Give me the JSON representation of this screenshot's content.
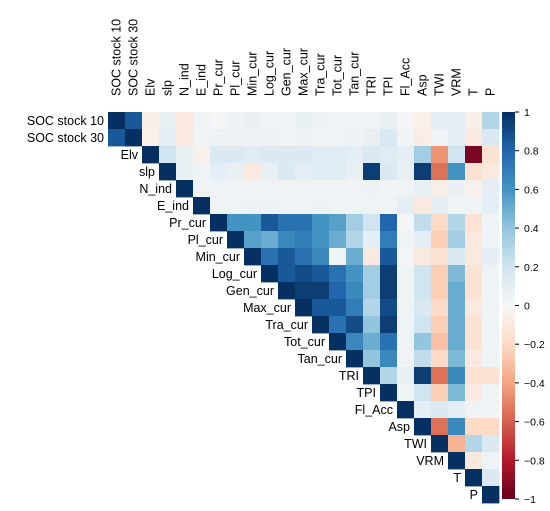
{
  "chart_data": {
    "type": "heatmap",
    "variables": [
      "SOC stock 10",
      "SOC stock 30",
      "Elv",
      "slp",
      "N_ind",
      "E_ind",
      "Pr_cur",
      "Pl_cur",
      "Min_cur",
      "Log_cur",
      "Gen_cur",
      "Max_cur",
      "Tra_cur",
      "Tot_cur",
      "Tan_cur",
      "TRI",
      "TPI",
      "Fl_Acc",
      "Asp",
      "TWI",
      "VRM",
      "T",
      "P"
    ],
    "layout": "lower-left-triangle",
    "colorbar": {
      "min": -1,
      "max": 1,
      "ticks": [
        1,
        0.8,
        0.6,
        0.4,
        0.2,
        0,
        -0.2,
        -0.4,
        -0.6,
        -0.8,
        -1
      ],
      "tick_labels": [
        "1",
        "0.8",
        "0.6",
        "0.4",
        "0.2",
        "0",
        "−0.2",
        "−0.4",
        "−0.6",
        "−0.8",
        "−1"
      ],
      "colors": {
        "neg": "#67001f",
        "mid": "#f7f7f7",
        "pos": "#053061"
      }
    },
    "matrix": [
      [
        1,
        0.85,
        -0.06,
        0.08,
        -0.1,
        0.05,
        0.02,
        0.06,
        0.07,
        0.05,
        0.05,
        0.07,
        0.06,
        0.05,
        0.05,
        0.05,
        0.08,
        0.02,
        -0.05,
        0.1,
        0.1,
        -0.06,
        0.3
      ],
      [
        0.85,
        1,
        -0.05,
        0.1,
        -0.1,
        0.03,
        0.06,
        0.06,
        0.06,
        0.06,
        0.05,
        0.06,
        0.05,
        0.05,
        0.06,
        0.08,
        0.15,
        0.03,
        -0.08,
        0.03,
        0.1,
        -0.1,
        0.15
      ],
      [
        -0.06,
        -0.05,
        1,
        0.2,
        0.08,
        -0.05,
        0.15,
        0.15,
        0.12,
        0.15,
        0.15,
        0.15,
        0.12,
        0.12,
        0.1,
        0.15,
        0.12,
        0.1,
        0.35,
        -0.45,
        0.2,
        -0.95,
        -0.15
      ],
      [
        0.08,
        0.1,
        0.2,
        1,
        0.08,
        0.05,
        0.1,
        0.08,
        -0.1,
        0.08,
        0.15,
        0.1,
        0.12,
        0.12,
        0.08,
        0.95,
        0.15,
        0.08,
        0.95,
        -0.55,
        0.6,
        -0.15,
        -0.1
      ],
      [
        -0.1,
        -0.1,
        0.08,
        0.08,
        1,
        0.05,
        0.05,
        0.05,
        0.04,
        0.04,
        0.05,
        0.05,
        0.05,
        0.05,
        0.04,
        0.06,
        0.03,
        0.05,
        0.08,
        -0.06,
        0.07,
        -0.05,
        0.1
      ],
      [
        0.05,
        0.03,
        -0.05,
        0.05,
        0.05,
        1,
        0.05,
        0.05,
        0.06,
        0.06,
        0.05,
        0.05,
        0.06,
        0.05,
        0.05,
        0.05,
        0.04,
        0.1,
        -0.1,
        0.1,
        0.05,
        0.05,
        0.1
      ],
      [
        0.02,
        0.06,
        0.15,
        0.1,
        0.05,
        0.05,
        1,
        0.6,
        0.6,
        0.85,
        0.75,
        0.75,
        0.6,
        0.55,
        0.35,
        0.2,
        0.8,
        0.02,
        0.25,
        -0.2,
        0.3,
        -0.15,
        0.05
      ],
      [
        0.06,
        0.06,
        0.15,
        0.08,
        0.05,
        0.05,
        0.6,
        1,
        0.55,
        0.5,
        0.65,
        0.7,
        0.6,
        0.5,
        0.3,
        0.1,
        0.7,
        0.05,
        0.1,
        -0.25,
        0.35,
        -0.1,
        0.05
      ],
      [
        0.07,
        0.06,
        0.12,
        -0.1,
        0.04,
        0.06,
        0.6,
        0.55,
        1,
        0.75,
        0.85,
        0.75,
        0.65,
        0.05,
        0.5,
        -0.1,
        0.85,
        0.02,
        -0.1,
        -0.15,
        0.15,
        -0.1,
        0.1
      ],
      [
        0.05,
        0.06,
        0.15,
        0.08,
        0.04,
        0.06,
        0.85,
        0.5,
        0.75,
        1,
        0.85,
        0.9,
        0.85,
        0.75,
        0.6,
        0.35,
        0.95,
        0.05,
        0.2,
        -0.25,
        0.45,
        -0.15,
        0.05
      ],
      [
        0.05,
        0.05,
        0.15,
        0.15,
        0.05,
        0.05,
        0.75,
        0.65,
        0.85,
        0.85,
        1,
        0.95,
        0.95,
        0.8,
        0.65,
        0.35,
        0.95,
        0.05,
        0.2,
        -0.25,
        0.5,
        -0.15,
        0.05
      ],
      [
        0.07,
        0.06,
        0.15,
        0.1,
        0.05,
        0.05,
        0.75,
        0.7,
        0.75,
        0.9,
        0.95,
        1,
        0.85,
        0.85,
        0.7,
        0.3,
        0.9,
        0.05,
        0.15,
        -0.2,
        0.5,
        -0.1,
        0.05
      ],
      [
        0.06,
        0.05,
        0.12,
        0.12,
        0.05,
        0.06,
        0.6,
        0.6,
        0.65,
        0.85,
        0.95,
        0.85,
        1,
        0.75,
        0.9,
        0.4,
        0.95,
        0.05,
        0.2,
        -0.25,
        0.5,
        -0.15,
        0.05
      ],
      [
        0.05,
        0.05,
        0.12,
        0.12,
        0.05,
        0.05,
        0.55,
        0.5,
        0.05,
        0.75,
        0.8,
        0.85,
        0.75,
        1,
        0.65,
        0.5,
        0.75,
        0.05,
        0.4,
        -0.3,
        0.5,
        -0.15,
        0.05
      ],
      [
        0.05,
        0.06,
        0.1,
        0.08,
        0.04,
        0.05,
        0.35,
        0.3,
        0.5,
        0.6,
        0.65,
        0.7,
        0.9,
        0.65,
        1,
        0.4,
        0.65,
        0.03,
        0.25,
        -0.2,
        0.45,
        -0.1,
        0.05
      ],
      [
        0.05,
        0.08,
        0.15,
        0.95,
        0.06,
        0.05,
        0.2,
        0.1,
        -0.1,
        0.35,
        0.35,
        0.3,
        0.4,
        0.5,
        0.4,
        1,
        0.3,
        0.08,
        0.95,
        -0.55,
        0.65,
        -0.15,
        -0.15
      ],
      [
        0.08,
        0.15,
        0.12,
        0.15,
        0.03,
        0.04,
        0.8,
        0.7,
        0.85,
        0.95,
        0.95,
        0.9,
        0.95,
        0.75,
        0.65,
        0.3,
        1,
        0.05,
        0.2,
        -0.25,
        0.45,
        -0.1,
        0.05
      ],
      [
        0.02,
        0.03,
        0.1,
        0.08,
        0.05,
        0.1,
        0.02,
        0.05,
        0.02,
        0.05,
        0.05,
        0.05,
        0.05,
        0.05,
        0.03,
        0.08,
        0.05,
        1,
        0.1,
        0.15,
        0.1,
        0.05,
        0.05
      ],
      [
        -0.05,
        -0.08,
        0.35,
        0.95,
        0.08,
        -0.1,
        0.25,
        0.1,
        -0.1,
        0.2,
        0.2,
        0.15,
        0.2,
        0.4,
        0.25,
        0.95,
        0.2,
        0.1,
        1,
        -0.55,
        0.65,
        -0.2,
        -0.2
      ],
      [
        0.1,
        0.03,
        -0.45,
        -0.55,
        -0.06,
        0.1,
        -0.2,
        -0.25,
        -0.15,
        -0.25,
        -0.25,
        -0.2,
        -0.25,
        -0.3,
        -0.2,
        -0.55,
        -0.25,
        0.15,
        -0.55,
        1,
        -0.35,
        0.3,
        0.15
      ],
      [
        0.1,
        0.1,
        0.2,
        0.6,
        0.07,
        0.05,
        0.3,
        0.35,
        0.15,
        0.45,
        0.5,
        0.5,
        0.5,
        0.5,
        0.45,
        0.65,
        0.45,
        0.1,
        0.65,
        -0.35,
        1,
        -0.1,
        0.05
      ],
      [
        -0.06,
        -0.1,
        -0.95,
        -0.15,
        -0.05,
        0.05,
        -0.15,
        -0.1,
        -0.1,
        -0.15,
        -0.15,
        -0.1,
        -0.15,
        -0.15,
        -0.1,
        -0.15,
        -0.1,
        0.05,
        -0.2,
        0.3,
        -0.1,
        1,
        0.15
      ],
      [
        0.3,
        0.15,
        -0.15,
        -0.1,
        0.1,
        0.1,
        0.05,
        0.05,
        0.1,
        0.05,
        0.05,
        0.05,
        0.05,
        0.05,
        0.05,
        -0.15,
        0.05,
        0.05,
        -0.2,
        0.15,
        0.05,
        0.15,
        1
      ]
    ]
  }
}
